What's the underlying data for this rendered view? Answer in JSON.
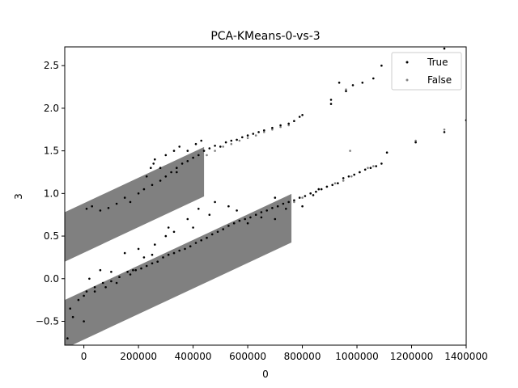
{
  "chart_data": {
    "type": "scatter",
    "title": "PCA-KMeans-0-vs-3",
    "xlabel": "0",
    "ylabel": "3",
    "xlim": [
      -70000,
      1400000
    ],
    "ylim": [
      -0.78,
      2.72
    ],
    "xticks": [
      0,
      200000,
      400000,
      600000,
      800000,
      1000000,
      1200000,
      1400000
    ],
    "xtick_labels": [
      "0",
      "200000",
      "400000",
      "600000",
      "800000",
      "1000000",
      "1200000",
      "1400000"
    ],
    "yticks": [
      -0.5,
      0.0,
      0.5,
      1.0,
      1.5,
      2.0,
      2.5
    ],
    "ytick_labels": [
      "−0.5",
      "0.0",
      "0.5",
      "1.0",
      "1.5",
      "2.0",
      "2.5"
    ],
    "grid": false,
    "legend_placement": "top-right",
    "series": [
      {
        "name": "True",
        "color": "#000000",
        "points": [
          [
            10000,
            0.82
          ],
          [
            30000,
            0.85
          ],
          [
            60000,
            0.8
          ],
          [
            90000,
            0.83
          ],
          [
            120000,
            0.88
          ],
          [
            150000,
            0.95
          ],
          [
            170000,
            0.9
          ],
          [
            200000,
            1.0
          ],
          [
            220000,
            1.05
          ],
          [
            250000,
            1.1
          ],
          [
            280000,
            1.15
          ],
          [
            300000,
            1.2
          ],
          [
            320000,
            1.25
          ],
          [
            340000,
            1.3
          ],
          [
            360000,
            1.35
          ],
          [
            380000,
            1.38
          ],
          [
            400000,
            1.42
          ],
          [
            420000,
            1.45
          ],
          [
            440000,
            1.5
          ],
          [
            460000,
            1.53
          ],
          [
            480000,
            1.56
          ],
          [
            500000,
            1.55
          ],
          [
            520000,
            1.6
          ],
          [
            540000,
            1.62
          ],
          [
            560000,
            1.63
          ],
          [
            580000,
            1.66
          ],
          [
            600000,
            1.68
          ],
          [
            620000,
            1.7
          ],
          [
            640000,
            1.72
          ],
          [
            660000,
            1.74
          ],
          [
            690000,
            1.77
          ],
          [
            720000,
            1.8
          ],
          [
            750000,
            1.82
          ],
          [
            770000,
            1.85
          ],
          [
            790000,
            1.9
          ],
          [
            800000,
            1.92
          ],
          [
            245000,
            1.3
          ],
          [
            255000,
            1.35
          ],
          [
            260000,
            1.4
          ],
          [
            300000,
            1.45
          ],
          [
            330000,
            1.5
          ],
          [
            350000,
            1.55
          ],
          [
            230000,
            1.2
          ],
          [
            280000,
            1.3
          ],
          [
            340000,
            1.25
          ],
          [
            380000,
            1.5
          ],
          [
            410000,
            1.58
          ],
          [
            430000,
            1.62
          ],
          [
            905000,
            2.1
          ],
          [
            905000,
            2.05
          ],
          [
            935000,
            2.3
          ],
          [
            960000,
            2.2
          ],
          [
            985000,
            2.27
          ],
          [
            1020000,
            2.3
          ],
          [
            1060000,
            2.35
          ],
          [
            1090000,
            2.5
          ],
          [
            1320000,
            2.7
          ],
          [
            -50000,
            -0.35
          ],
          [
            -20000,
            -0.25
          ],
          [
            10000,
            -0.15
          ],
          [
            40000,
            -0.1
          ],
          [
            70000,
            -0.05
          ],
          [
            100000,
            -0.03
          ],
          [
            130000,
            0.02
          ],
          [
            160000,
            0.08
          ],
          [
            190000,
            0.1
          ],
          [
            210000,
            0.12
          ],
          [
            230000,
            0.15
          ],
          [
            250000,
            0.18
          ],
          [
            270000,
            0.2
          ],
          [
            290000,
            0.25
          ],
          [
            310000,
            0.28
          ],
          [
            330000,
            0.3
          ],
          [
            350000,
            0.33
          ],
          [
            370000,
            0.35
          ],
          [
            390000,
            0.38
          ],
          [
            410000,
            0.42
          ],
          [
            430000,
            0.45
          ],
          [
            450000,
            0.48
          ],
          [
            470000,
            0.52
          ],
          [
            490000,
            0.55
          ],
          [
            510000,
            0.58
          ],
          [
            530000,
            0.62
          ],
          [
            550000,
            0.65
          ],
          [
            570000,
            0.68
          ],
          [
            590000,
            0.7
          ],
          [
            610000,
            0.72
          ],
          [
            630000,
            0.75
          ],
          [
            650000,
            0.78
          ],
          [
            670000,
            0.8
          ],
          [
            690000,
            0.83
          ],
          [
            710000,
            0.85
          ],
          [
            730000,
            0.88
          ],
          [
            750000,
            0.9
          ],
          [
            770000,
            0.92
          ],
          [
            790000,
            0.95
          ],
          [
            810000,
            0.97
          ],
          [
            830000,
            1.0
          ],
          [
            850000,
            1.02
          ],
          [
            870000,
            1.05
          ],
          [
            890000,
            1.08
          ],
          [
            910000,
            1.1
          ],
          [
            930000,
            1.12
          ],
          [
            950000,
            1.18
          ],
          [
            970000,
            1.2
          ],
          [
            990000,
            1.22
          ],
          [
            1010000,
            1.25
          ],
          [
            1030000,
            1.28
          ],
          [
            1050000,
            1.3
          ],
          [
            1070000,
            1.32
          ],
          [
            1090000,
            1.35
          ],
          [
            1110000,
            1.48
          ],
          [
            1215000,
            1.6
          ],
          [
            1320000,
            1.72
          ],
          [
            1400000,
            1.86
          ],
          [
            150000,
            0.3
          ],
          [
            200000,
            0.35
          ],
          [
            260000,
            0.4
          ],
          [
            310000,
            0.6
          ],
          [
            330000,
            0.55
          ],
          [
            380000,
            0.7
          ],
          [
            420000,
            0.82
          ],
          [
            480000,
            0.9
          ],
          [
            530000,
            0.85
          ],
          [
            560000,
            0.8
          ],
          [
            300000,
            0.5
          ],
          [
            250000,
            0.28
          ],
          [
            180000,
            0.1
          ],
          [
            220000,
            0.25
          ],
          [
            400000,
            0.6
          ],
          [
            460000,
            0.75
          ],
          [
            600000,
            0.65
          ],
          [
            650000,
            0.72
          ],
          [
            700000,
            0.7
          ],
          [
            740000,
            0.82
          ],
          [
            800000,
            0.85
          ],
          [
            840000,
            0.98
          ],
          [
            860000,
            1.05
          ],
          [
            700000,
            0.95
          ],
          [
            0,
            -0.2
          ],
          [
            40000,
            -0.15
          ],
          [
            80000,
            -0.1
          ],
          [
            120000,
            -0.05
          ],
          [
            170000,
            0.05
          ],
          [
            0,
            -0.5
          ],
          [
            -40000,
            -0.45
          ],
          [
            -60000,
            -0.7
          ],
          [
            20000,
            0.0
          ],
          [
            60000,
            0.1
          ],
          [
            100000,
            0.08
          ]
        ]
      },
      {
        "name": "False",
        "color": "#808080",
        "bands": [
          {
            "x_start": -70000,
            "x_end": 440000,
            "y_low_at_start": 0.2,
            "y_high_at_start": 0.78,
            "slope_per_100000": 0.15
          },
          {
            "x_start": -70000,
            "x_end": 760000,
            "y_low_at_start": -0.82,
            "y_high_at_start": -0.25,
            "slope_per_100000": 0.15
          }
        ],
        "points": [
          [
            450000,
            1.45
          ],
          [
            480000,
            1.5
          ],
          [
            510000,
            1.55
          ],
          [
            540000,
            1.58
          ],
          [
            570000,
            1.62
          ],
          [
            600000,
            1.65
          ],
          [
            630000,
            1.68
          ],
          [
            660000,
            1.72
          ],
          [
            690000,
            1.75
          ],
          [
            720000,
            1.78
          ],
          [
            750000,
            1.8
          ],
          [
            770000,
            0.9
          ],
          [
            800000,
            0.95
          ],
          [
            830000,
            1.0
          ],
          [
            860000,
            1.05
          ],
          [
            890000,
            1.08
          ],
          [
            920000,
            1.12
          ],
          [
            950000,
            1.15
          ],
          [
            980000,
            1.2
          ],
          [
            1010000,
            1.25
          ],
          [
            1040000,
            1.3
          ],
          [
            1060000,
            1.32
          ],
          [
            960000,
            2.22
          ],
          [
            1320000,
            1.75
          ],
          [
            1215000,
            1.62
          ],
          [
            975000,
            1.5
          ]
        ]
      }
    ]
  }
}
